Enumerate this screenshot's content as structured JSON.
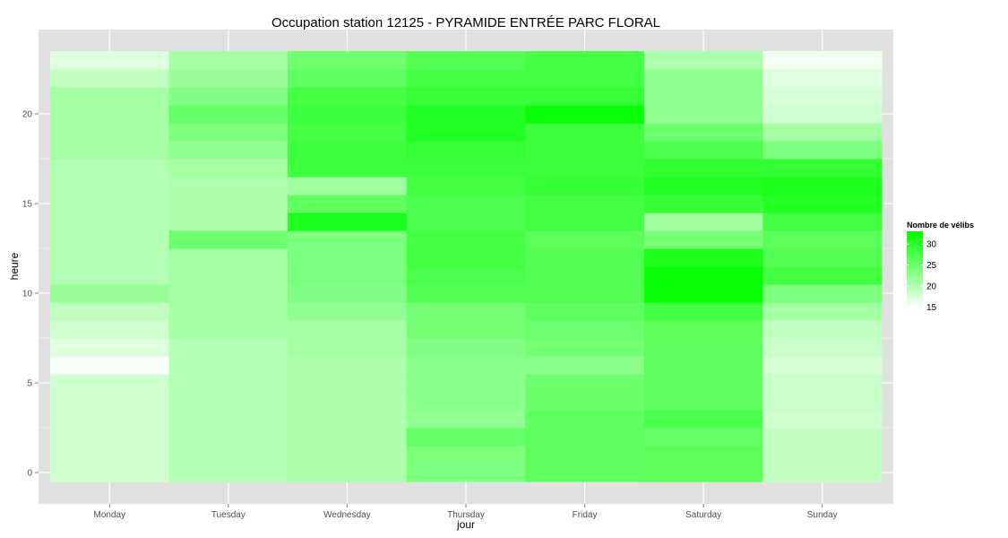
{
  "chart_data": {
    "type": "heatmap",
    "title": "Occupation station 12125 - PYRAMIDE ENTRÉE PARC FLORAL",
    "xlabel": "jour",
    "ylabel": "heure",
    "x_categories": [
      "Monday",
      "Tuesday",
      "Wednesday",
      "Thursday",
      "Friday",
      "Saturday",
      "Sunday"
    ],
    "y_values": [
      0,
      1,
      2,
      3,
      4,
      5,
      6,
      7,
      8,
      9,
      10,
      11,
      12,
      13,
      14,
      15,
      16,
      17,
      18,
      19,
      20,
      21,
      22,
      23
    ],
    "y_range": [
      -0.5,
      23.5
    ],
    "y_ticks": [
      0,
      5,
      10,
      15,
      20
    ],
    "y_tick_labels": [
      "0",
      "5",
      "10",
      "15",
      "20"
    ],
    "legend": {
      "title": "Nombre de vélibs",
      "range": [
        14.5,
        33
      ],
      "ticks": [
        15,
        20,
        25,
        30
      ],
      "tick_labels": [
        "15",
        "20",
        "25",
        "30"
      ],
      "low_color": "#ffffff",
      "high_color": "#00ff00",
      "placement": "right"
    },
    "colors": {
      "panel_background": "#e0e0e0",
      "grid": "#ffffff",
      "tick_text": "#4d4d4d"
    },
    "series": [
      {
        "name": "Monday",
        "values": [
          18,
          18,
          18,
          18,
          18,
          18,
          15,
          17,
          18,
          19,
          22,
          20,
          20,
          20,
          20,
          20,
          20,
          20,
          21,
          21,
          21,
          21,
          19,
          17
        ]
      },
      {
        "name": "Tuesday",
        "values": [
          20,
          20,
          20,
          20,
          20,
          20,
          20,
          20,
          21,
          21,
          21,
          21,
          21,
          25,
          20.5,
          20.5,
          20.5,
          21,
          22.5,
          24,
          25.5,
          23.5,
          22,
          21
        ]
      },
      {
        "name": "Wednesday",
        "values": [
          20.5,
          20.5,
          20.5,
          20.5,
          20.5,
          20.5,
          20.5,
          21,
          21,
          22.5,
          23.5,
          24,
          24,
          24,
          31,
          26,
          21.5,
          28.5,
          28.5,
          28,
          28.5,
          28,
          26,
          25
        ]
      },
      {
        "name": "Thursday",
        "values": [
          24,
          24,
          25.5,
          22.5,
          23,
          23,
          23,
          23.5,
          24.5,
          24.5,
          27,
          27.5,
          28,
          28,
          27.5,
          27.5,
          28,
          28.5,
          29,
          30.5,
          30.5,
          29,
          28,
          27
        ]
      },
      {
        "name": "Friday",
        "values": [
          26,
          26,
          26,
          26,
          25,
          25,
          23,
          24.5,
          25,
          26,
          27,
          27,
          27,
          26.5,
          28,
          28,
          29,
          28.5,
          28.5,
          28.5,
          32.5,
          29,
          28,
          28
        ]
      },
      {
        "name": "Saturday",
        "values": [
          26.5,
          26.5,
          25.5,
          27.5,
          26,
          26,
          26,
          26,
          26.5,
          28,
          32.5,
          32.5,
          31,
          24.5,
          21.5,
          29,
          30.5,
          29.5,
          27.5,
          25,
          22.5,
          22.5,
          22.5,
          20.5
        ]
      },
      {
        "name": "Sunday",
        "values": [
          19,
          19,
          19,
          18,
          18.5,
          18.5,
          17.5,
          18.5,
          19,
          21,
          24,
          28,
          27,
          26.5,
          28,
          30.5,
          31,
          29.5,
          24,
          21,
          18,
          17.5,
          17,
          15.5
        ]
      }
    ]
  }
}
